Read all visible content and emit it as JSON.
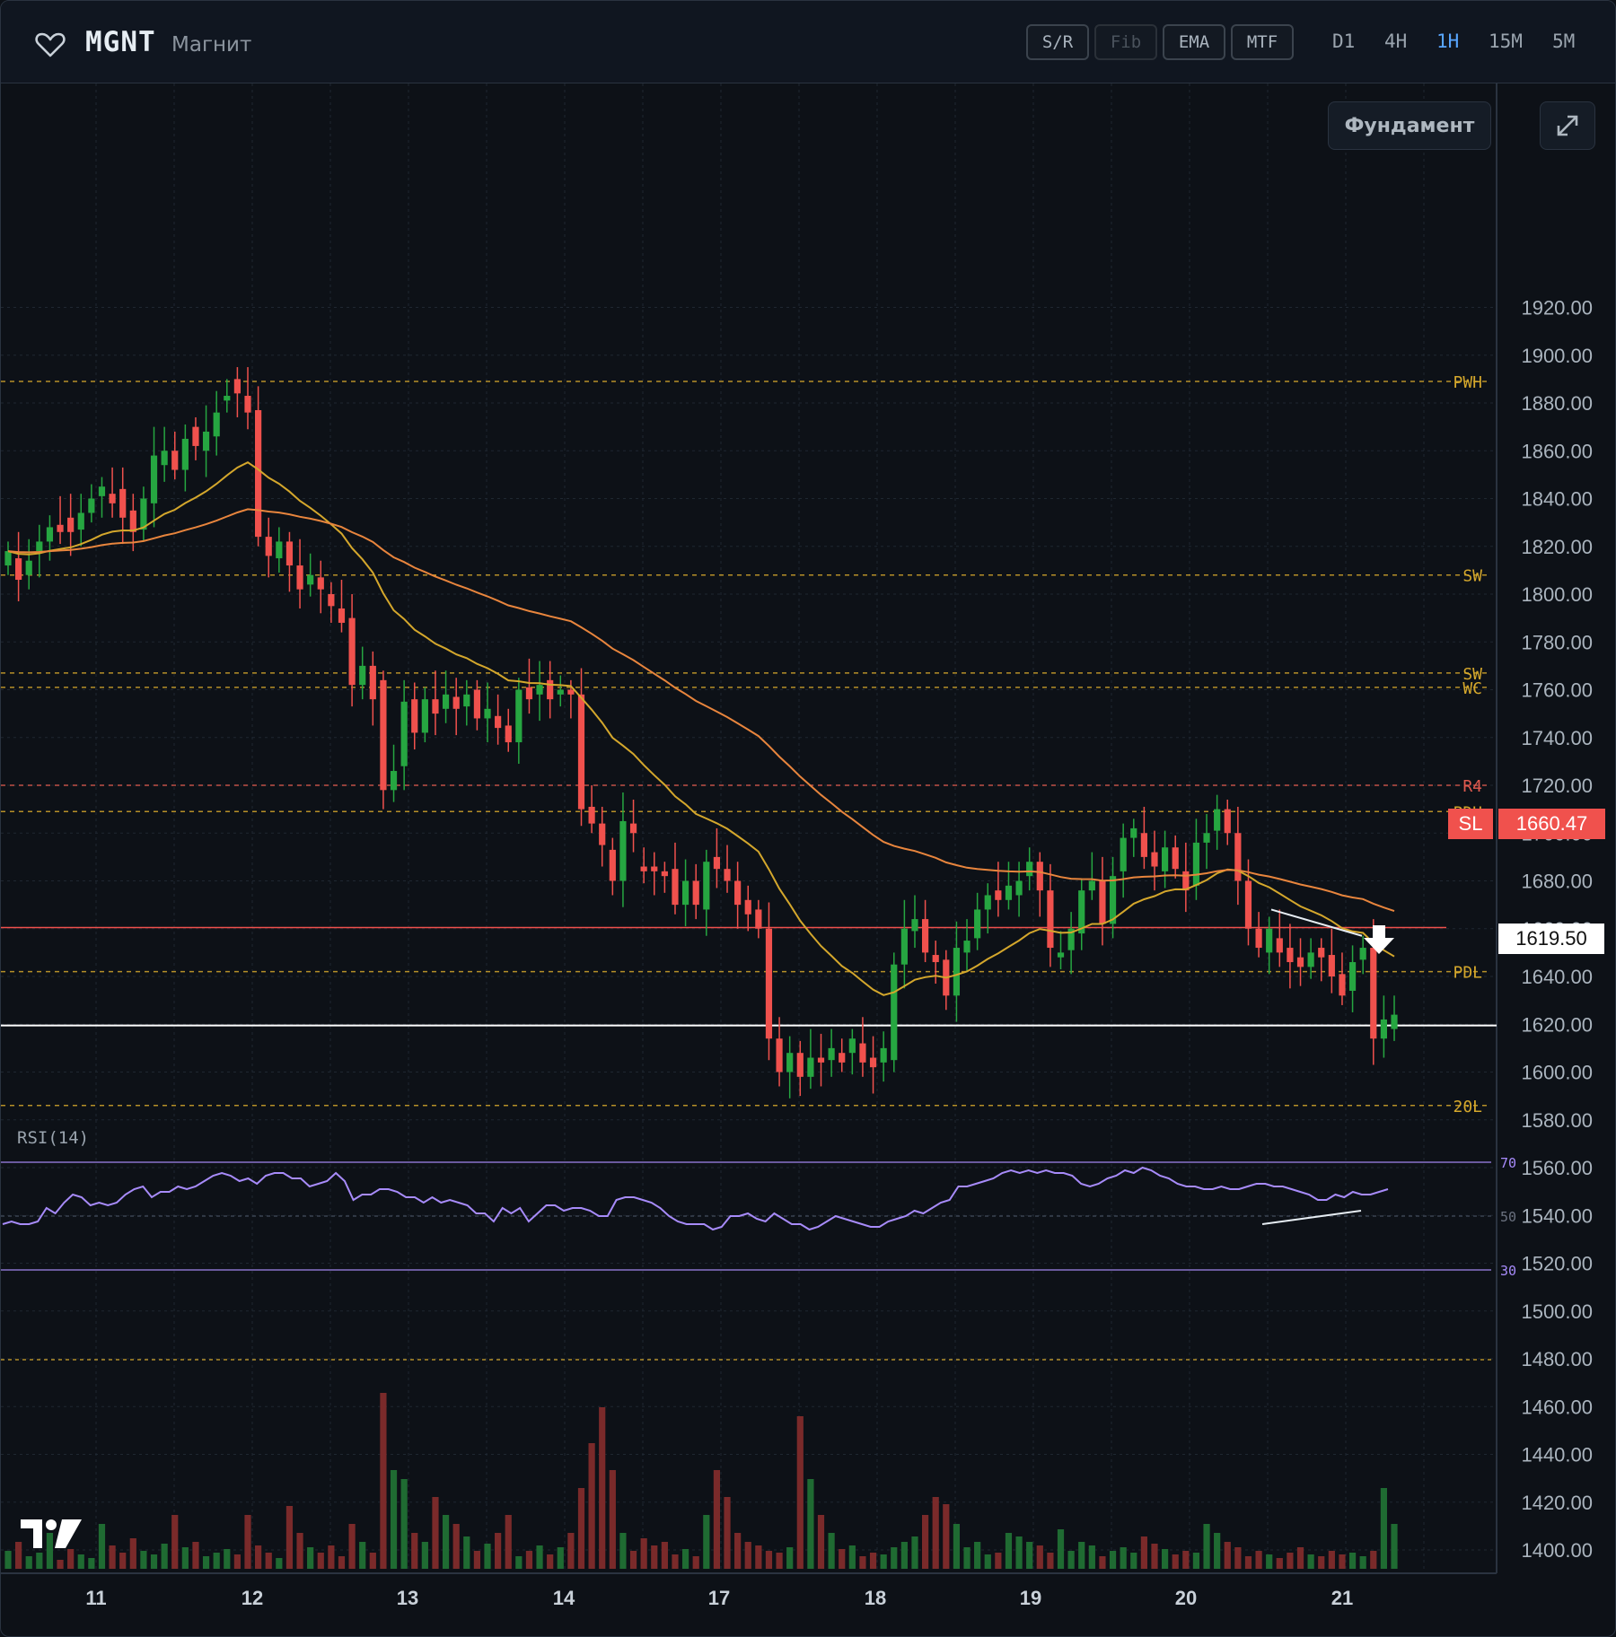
{
  "header": {
    "ticker": "MGNT",
    "company": "Магнит",
    "tools": [
      "S/R",
      "Fib",
      "EMA",
      "MTF"
    ],
    "timeframes": [
      "D1",
      "4H",
      "1H",
      "15M",
      "5M"
    ],
    "active_timeframe": "1H"
  },
  "overlay": {
    "fundamentals_label": "Фундамент"
  },
  "price_axis": {
    "labels": [
      "1920.00",
      "1900.00",
      "1880.00",
      "1860.00",
      "1840.00",
      "1820.00",
      "1800.00",
      "1780.00",
      "1760.00",
      "1740.00",
      "1720.00",
      "1700.00",
      "1680.00",
      "1660.00",
      "1640.00",
      "1620.00",
      "1600.00",
      "1580.00",
      "1560.00",
      "1540.00",
      "1520.00",
      "1500.00",
      "1480.00",
      "1460.00",
      "1440.00",
      "1420.00",
      "1400.00"
    ]
  },
  "time_axis": {
    "labels": [
      "11",
      "12",
      "13",
      "14",
      "17",
      "18",
      "19",
      "20",
      "21"
    ]
  },
  "levels": [
    {
      "label": "PWH",
      "price": 1889,
      "color": "#d4a72c"
    },
    {
      "label": "SW",
      "price": 1808,
      "color": "#d4a72c"
    },
    {
      "label": "SW",
      "price": 1767,
      "color": "#d4a72c"
    },
    {
      "label": "WC",
      "price": 1761,
      "color": "#d4a72c"
    },
    {
      "label": "R4",
      "price": 1720,
      "color": "#e05a4f"
    },
    {
      "label": "PDH",
      "price": 1709,
      "color": "#d4a72c"
    },
    {
      "label": "PDL",
      "price": 1642,
      "color": "#d4a72c"
    },
    {
      "label": "20L",
      "price": 1586,
      "color": "#d4a72c"
    }
  ],
  "stop_loss": {
    "label": "SL",
    "value": "1660.47",
    "price": 1660.47
  },
  "current_price": {
    "value": "1619.50",
    "price": 1619.5
  },
  "rsi": {
    "label": "RSI(14)",
    "levels": [
      "70",
      "50",
      "30"
    ],
    "values": [
      47,
      48,
      47,
      47,
      48,
      53,
      51,
      55,
      58,
      57,
      54,
      55,
      54,
      55,
      58,
      60,
      61,
      57,
      59,
      59,
      61,
      60,
      61,
      63,
      65,
      66,
      65,
      63,
      64,
      62,
      65,
      66,
      66,
      64,
      64,
      61,
      62,
      63,
      66,
      63,
      56,
      58,
      58,
      60,
      60,
      59,
      57,
      57,
      55,
      57,
      55,
      56,
      55,
      54,
      51,
      51,
      48,
      53,
      51,
      53,
      48,
      51,
      54,
      54,
      52,
      53,
      53,
      52,
      50,
      50,
      56,
      57,
      57,
      56,
      55,
      53,
      50,
      48,
      47,
      47,
      47,
      45,
      46,
      50,
      50,
      51,
      49,
      48,
      51,
      49,
      47,
      47,
      45,
      46,
      48,
      50,
      49,
      48,
      47,
      46,
      46,
      48,
      49,
      50,
      52,
      51,
      53,
      55,
      56,
      61,
      61,
      62,
      63,
      64,
      66,
      67,
      66,
      67,
      66,
      67,
      66,
      66,
      65,
      62,
      61,
      62,
      64,
      65,
      67,
      66,
      68,
      67,
      65,
      64,
      62,
      61,
      61,
      60,
      60,
      61,
      60,
      60,
      61,
      62,
      62,
      61,
      61,
      60,
      59,
      58,
      56,
      56,
      58,
      57,
      59,
      58,
      58,
      59,
      60
    ]
  },
  "volume_colors": {
    "up": "#1f6b32",
    "down": "#7a2a2a"
  },
  "colors": {
    "bg": "#0d1117",
    "up": "#26a641",
    "down": "#f0514d",
    "ema_fast": "#d4a72c",
    "ema_slow": "#e8853d",
    "rsi": "#a78bfa",
    "grid": "#1f2731",
    "active": "#58a6ff"
  }
}
